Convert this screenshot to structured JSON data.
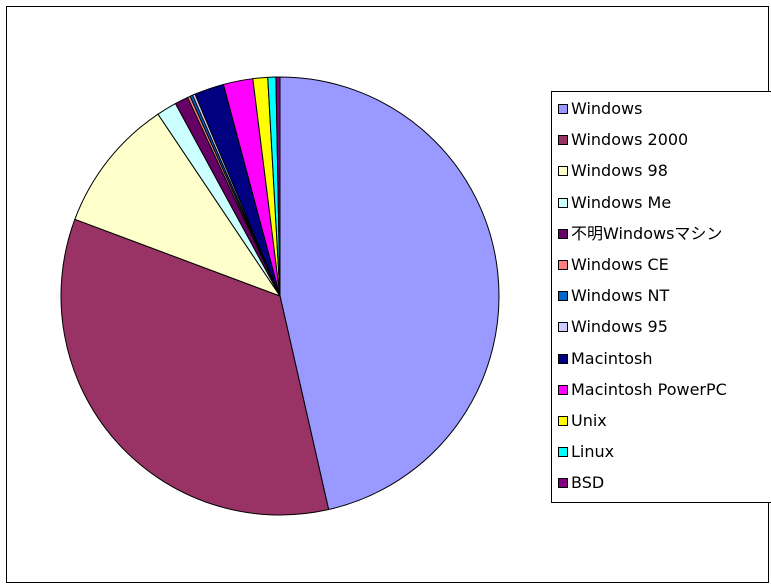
{
  "chart_data": {
    "type": "pie",
    "title": "",
    "legend_position": "right",
    "start_angle_deg": 0,
    "direction": "clockwise",
    "series": [
      {
        "name": "Windows",
        "value": 46.9,
        "color": "#9999ff"
      },
      {
        "name": "Windows 2000",
        "value": 34.6,
        "color": "#993366"
      },
      {
        "name": "Windows 98",
        "value": 10.0,
        "color": "#ffffcc"
      },
      {
        "name": "Windows Me",
        "value": 1.5,
        "color": "#ccffff"
      },
      {
        "name": "不明Windowsマシン",
        "value": 1.0,
        "color": "#660066"
      },
      {
        "name": "Windows CE",
        "value": 0.2,
        "color": "#ff8080"
      },
      {
        "name": "Windows NT",
        "value": 0.2,
        "color": "#0066cc"
      },
      {
        "name": "Windows 95",
        "value": 0.2,
        "color": "#ccccff"
      },
      {
        "name": "Macintosh",
        "value": 2.2,
        "color": "#000080"
      },
      {
        "name": "Macintosh PowerPC",
        "value": 2.2,
        "color": "#ff00ff"
      },
      {
        "name": "Unix",
        "value": 1.1,
        "color": "#ffff00"
      },
      {
        "name": "Linux",
        "value": 0.6,
        "color": "#00ffff"
      },
      {
        "name": "BSD",
        "value": 0.3,
        "color": "#800080"
      }
    ]
  }
}
